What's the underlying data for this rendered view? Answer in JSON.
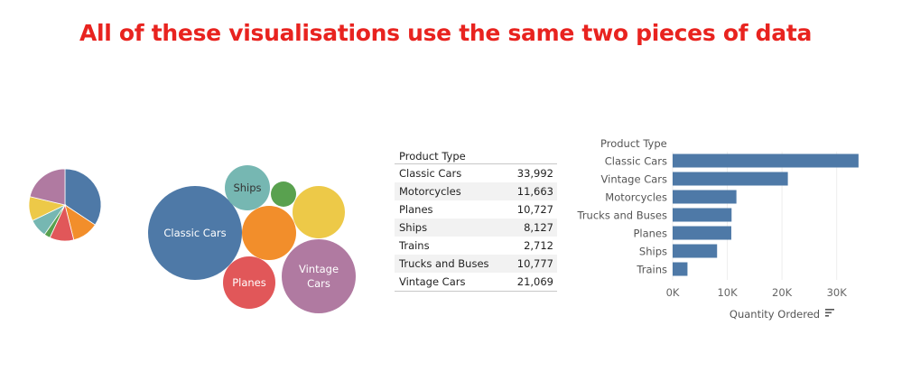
{
  "headline": "All of these visualisations use the same two pieces of data",
  "colors": {
    "Classic Cars": "#4e79a7",
    "Motorcycles": "#f28e2b",
    "Planes": "#e15759",
    "Ships": "#76b7b2",
    "Trains": "#59a14f",
    "Trucks and Buses": "#edc948",
    "Vintage Cars": "#b07aa1",
    "headline": "#e8231f",
    "bar": "#4e79a7"
  },
  "table": {
    "header": "Product Type",
    "rows": [
      {
        "label": "Classic Cars",
        "value": "33,992"
      },
      {
        "label": "Motorcycles",
        "value": "11,663"
      },
      {
        "label": "Planes",
        "value": "10,727"
      },
      {
        "label": "Ships",
        "value": "8,127"
      },
      {
        "label": "Trains",
        "value": "2,712"
      },
      {
        "label": "Trucks and Buses",
        "value": "10,777"
      },
      {
        "label": "Vintage Cars",
        "value": "21,069"
      }
    ]
  },
  "chart_data": [
    {
      "type": "pie",
      "categories": [
        "Classic Cars",
        "Motorcycles",
        "Planes",
        "Trains",
        "Ships",
        "Trucks and Buses",
        "Vintage Cars"
      ],
      "values": [
        33992,
        11663,
        10727,
        2712,
        8127,
        10777,
        21069
      ]
    },
    {
      "type": "bubble",
      "bubbles": [
        {
          "name": "Classic Cars",
          "label": "Classic Cars",
          "value": 33992,
          "text_color": "#ffffff"
        },
        {
          "name": "Vintage Cars",
          "label": "Vintage Cars",
          "value": 21069,
          "text_color": "#ffffff"
        },
        {
          "name": "Motorcycles",
          "label": "",
          "value": 11663,
          "text_color": "#ffffff"
        },
        {
          "name": "Trucks and Buses",
          "label": "",
          "value": 10777,
          "text_color": "#ffffff"
        },
        {
          "name": "Planes",
          "label": "Planes",
          "value": 10727,
          "text_color": "#ffffff"
        },
        {
          "name": "Ships",
          "label": "Ships",
          "value": 8127,
          "text_color": "#333333"
        },
        {
          "name": "Trains",
          "label": "",
          "value": 2712,
          "text_color": "#ffffff"
        }
      ]
    },
    {
      "type": "bar",
      "orientation": "horizontal",
      "category_header": "Product Type",
      "categories": [
        "Classic Cars",
        "Vintage Cars",
        "Motorcycles",
        "Trucks and Buses",
        "Planes",
        "Ships",
        "Trains"
      ],
      "values": [
        33992,
        21069,
        11663,
        10777,
        10727,
        8127,
        2712
      ],
      "xlabel": "Quantity Ordered",
      "xticks": [
        "0K",
        "10K",
        "20K",
        "30K"
      ],
      "xtick_values": [
        0,
        10000,
        20000,
        30000
      ],
      "xlim": [
        0,
        35500
      ],
      "grid": true
    }
  ]
}
